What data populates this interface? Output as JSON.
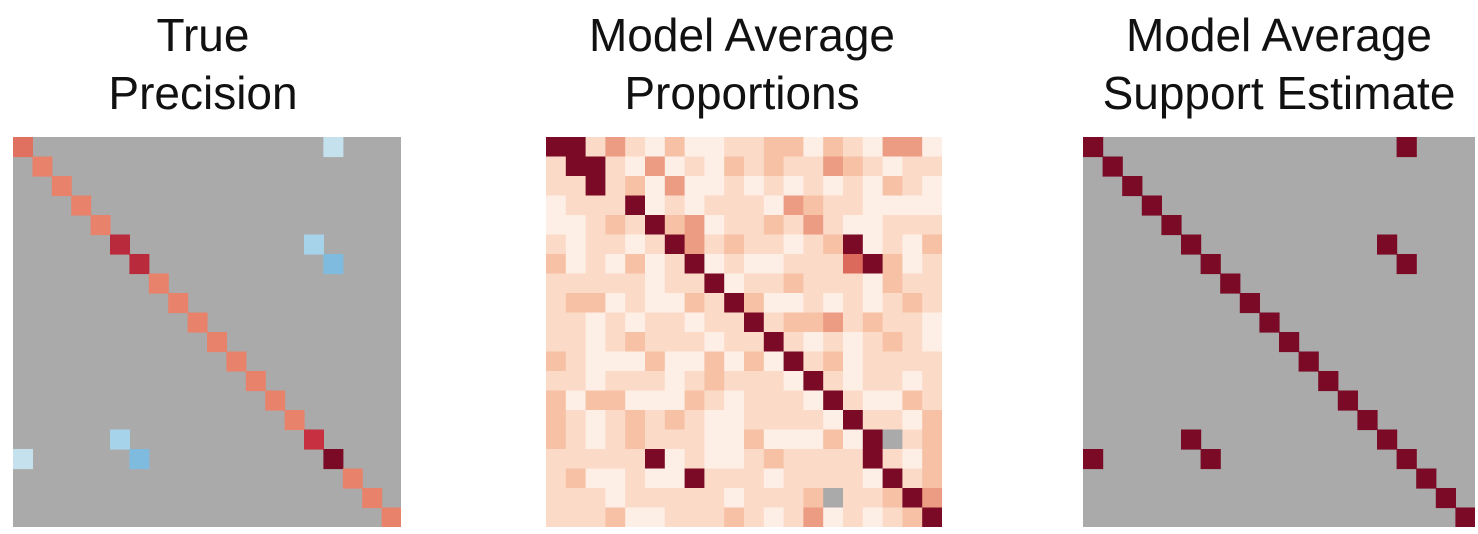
{
  "chart_data": [
    {
      "type": "heatmap",
      "title_lines": [
        "True",
        "Precision"
      ],
      "n": 20,
      "background": "#aaaaaa",
      "cells": [
        {
          "r": 0,
          "c": 0,
          "color": "#e07060"
        },
        {
          "r": 1,
          "c": 1,
          "color": "#e8826a"
        },
        {
          "r": 2,
          "c": 2,
          "color": "#e8826a"
        },
        {
          "r": 3,
          "c": 3,
          "color": "#e8826a"
        },
        {
          "r": 4,
          "c": 4,
          "color": "#e8826a"
        },
        {
          "r": 5,
          "c": 5,
          "color": "#b82a3c"
        },
        {
          "r": 6,
          "c": 6,
          "color": "#b82a3c"
        },
        {
          "r": 7,
          "c": 7,
          "color": "#e8826a"
        },
        {
          "r": 8,
          "c": 8,
          "color": "#e8826a"
        },
        {
          "r": 9,
          "c": 9,
          "color": "#e8826a"
        },
        {
          "r": 10,
          "c": 10,
          "color": "#e8826a"
        },
        {
          "r": 11,
          "c": 11,
          "color": "#e8826a"
        },
        {
          "r": 12,
          "c": 12,
          "color": "#e8826a"
        },
        {
          "r": 13,
          "c": 13,
          "color": "#e8826a"
        },
        {
          "r": 14,
          "c": 14,
          "color": "#e8826a"
        },
        {
          "r": 15,
          "c": 15,
          "color": "#c73040"
        },
        {
          "r": 16,
          "c": 16,
          "color": "#7a0a25"
        },
        {
          "r": 17,
          "c": 17,
          "color": "#e8826a"
        },
        {
          "r": 18,
          "c": 18,
          "color": "#e8826a"
        },
        {
          "r": 19,
          "c": 19,
          "color": "#e8826a"
        },
        {
          "r": 0,
          "c": 16,
          "color": "#c5e1ee"
        },
        {
          "r": 16,
          "c": 0,
          "color": "#c5e1ee"
        },
        {
          "r": 5,
          "c": 15,
          "color": "#a6d2ea"
        },
        {
          "r": 15,
          "c": 5,
          "color": "#a6d2ea"
        },
        {
          "r": 6,
          "c": 16,
          "color": "#7fbadf"
        },
        {
          "r": 16,
          "c": 6,
          "color": "#7fbadf"
        }
      ]
    },
    {
      "type": "heatmap",
      "title_lines": [
        "Model Average",
        "Proportions"
      ],
      "n": 20,
      "palette": [
        "#fdeee6",
        "#fbdac8",
        "#f7c1a6",
        "#eb9c82",
        "#db6a5c",
        "#7a0a25",
        "#aaaaaa"
      ],
      "grid": [
        "55131020011220210330",
        "15510301021211321011",
        "11512030010101010210",
        "01115010111032110000",
        "00121523011213100111",
        "10110153121101250102",
        "20102015010011145201",
        "11111011501121110211",
        "12201002152001010121",
        "11010110115122312110",
        "11012111011510101210",
        "21000200202051201111",
        "11011101211105101101",
        "20220002101110510021",
        "21012121001111051102",
        "21012111002000205612",
        "11111501001211115102",
        "12001005111011110512",
        "11101111101112611253",
        "11120011121013010125"
      ]
    },
    {
      "type": "heatmap",
      "title_lines": [
        "Model Average",
        "Support Estimate"
      ],
      "n": 20,
      "background": "#aaaaaa",
      "cells": [
        {
          "r": 0,
          "c": 0,
          "color": "#7a0a25"
        },
        {
          "r": 1,
          "c": 1,
          "color": "#7a0a25"
        },
        {
          "r": 2,
          "c": 2,
          "color": "#7a0a25"
        },
        {
          "r": 3,
          "c": 3,
          "color": "#7a0a25"
        },
        {
          "r": 4,
          "c": 4,
          "color": "#7a0a25"
        },
        {
          "r": 5,
          "c": 5,
          "color": "#7a0a25"
        },
        {
          "r": 6,
          "c": 6,
          "color": "#7a0a25"
        },
        {
          "r": 7,
          "c": 7,
          "color": "#7a0a25"
        },
        {
          "r": 8,
          "c": 8,
          "color": "#7a0a25"
        },
        {
          "r": 9,
          "c": 9,
          "color": "#7a0a25"
        },
        {
          "r": 10,
          "c": 10,
          "color": "#7a0a25"
        },
        {
          "r": 11,
          "c": 11,
          "color": "#7a0a25"
        },
        {
          "r": 12,
          "c": 12,
          "color": "#7a0a25"
        },
        {
          "r": 13,
          "c": 13,
          "color": "#7a0a25"
        },
        {
          "r": 14,
          "c": 14,
          "color": "#7a0a25"
        },
        {
          "r": 15,
          "c": 15,
          "color": "#7a0a25"
        },
        {
          "r": 16,
          "c": 16,
          "color": "#7a0a25"
        },
        {
          "r": 17,
          "c": 17,
          "color": "#7a0a25"
        },
        {
          "r": 18,
          "c": 18,
          "color": "#7a0a25"
        },
        {
          "r": 19,
          "c": 19,
          "color": "#7a0a25"
        },
        {
          "r": 0,
          "c": 16,
          "color": "#7a0a25"
        },
        {
          "r": 16,
          "c": 0,
          "color": "#7a0a25"
        },
        {
          "r": 5,
          "c": 15,
          "color": "#7a0a25"
        },
        {
          "r": 15,
          "c": 5,
          "color": "#7a0a25"
        },
        {
          "r": 6,
          "c": 16,
          "color": "#7a0a25"
        },
        {
          "r": 16,
          "c": 6,
          "color": "#7a0a25"
        }
      ]
    }
  ]
}
